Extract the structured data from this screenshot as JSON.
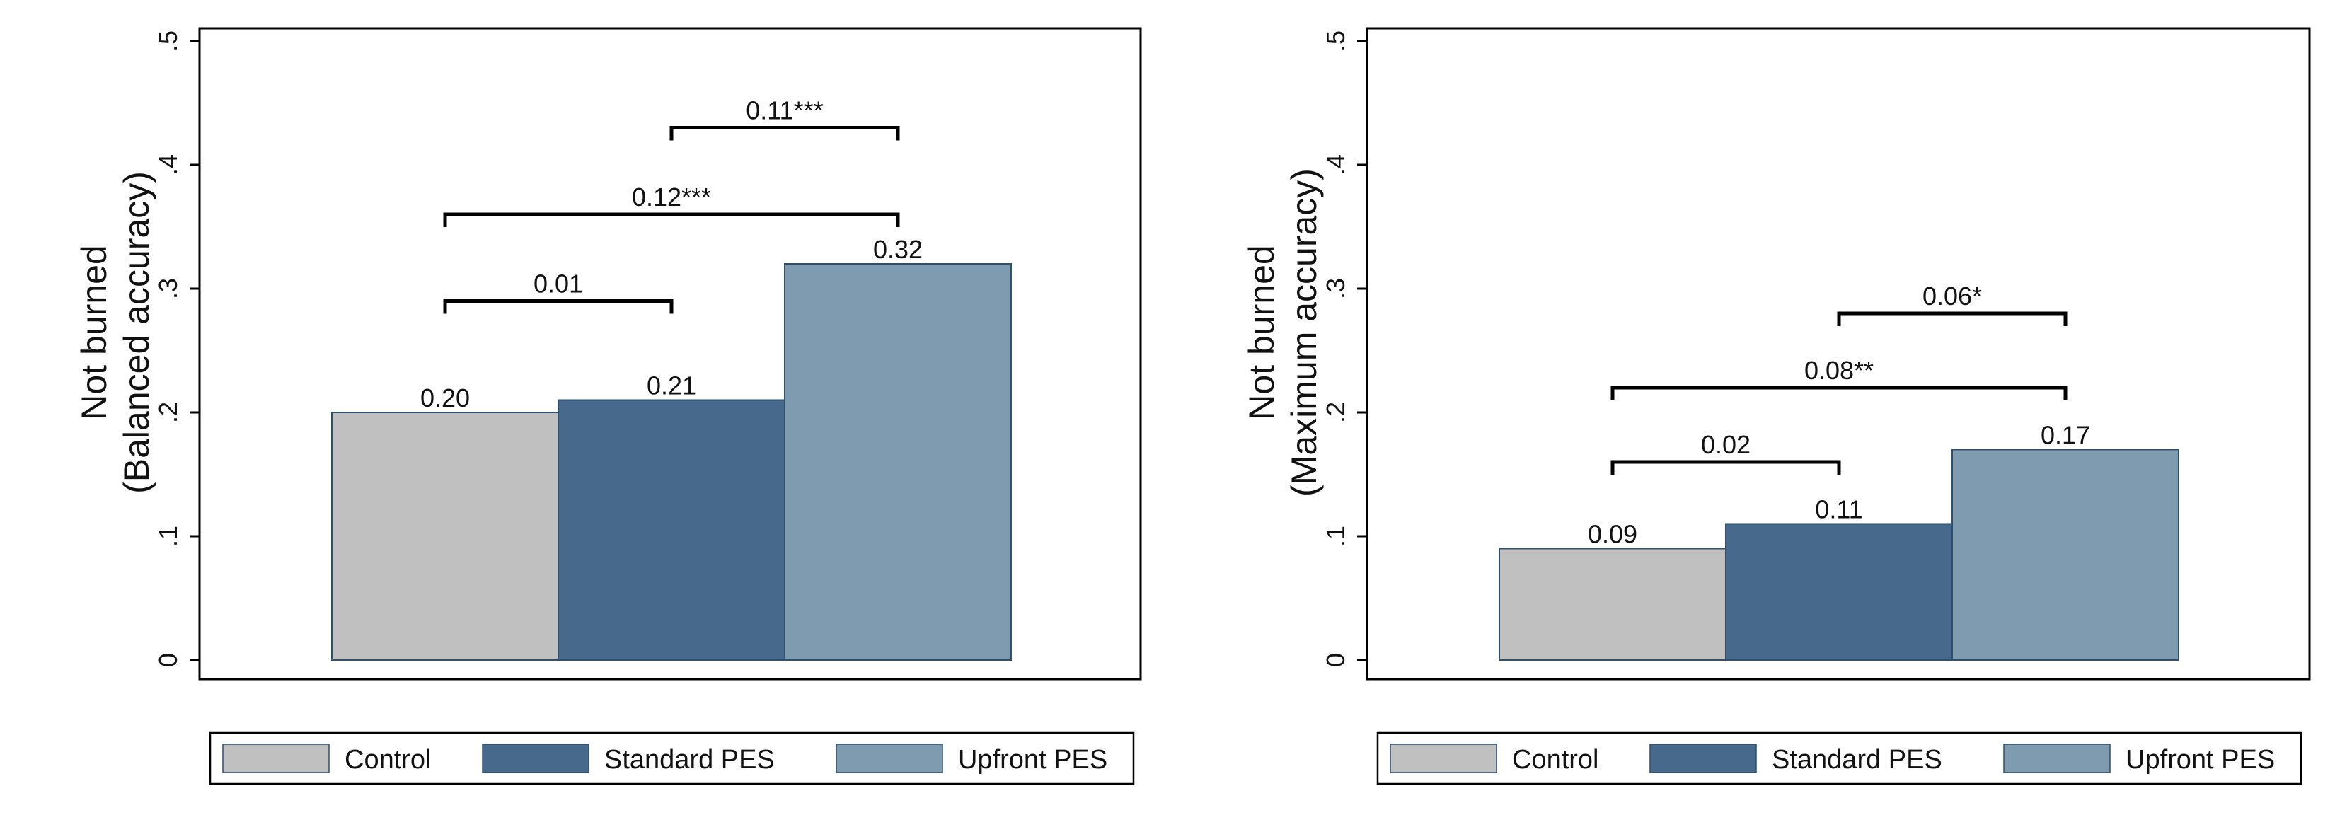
{
  "colors": {
    "control": "#c0c0c0",
    "standard_pes": "#476a8c",
    "upfront_pes": "#7f9bb0",
    "axis": "#000000",
    "background": "#ffffff"
  },
  "legend": {
    "placement": "bottom",
    "items": [
      "Control",
      "Standard PES",
      "Upfront PES"
    ]
  },
  "chart_data": [
    {
      "type": "bar",
      "categories": [
        "Control",
        "Standard PES",
        "Upfront PES"
      ],
      "values": [
        0.2,
        0.21,
        0.32
      ],
      "value_labels": [
        "0.20",
        "0.21",
        "0.32"
      ],
      "title": "",
      "xlabel": "",
      "ylabel_lines": [
        "Not burned",
        "(Balanced accuracy)"
      ],
      "ylim": [
        0,
        0.5
      ],
      "yticks": [
        0,
        0.1,
        0.2,
        0.3,
        0.4,
        0.5
      ],
      "ytick_labels": [
        "0",
        ".1",
        ".2",
        ".3",
        ".4",
        ".5"
      ],
      "grid": false,
      "comparisons": [
        {
          "from": 0,
          "to": 1,
          "y": 0.29,
          "label": "0.01"
        },
        {
          "from": 0,
          "to": 2,
          "y": 0.36,
          "label": "0.12***"
        },
        {
          "from": 1,
          "to": 2,
          "y": 0.43,
          "label": "0.11***"
        }
      ]
    },
    {
      "type": "bar",
      "categories": [
        "Control",
        "Standard PES",
        "Upfront PES"
      ],
      "values": [
        0.09,
        0.11,
        0.17
      ],
      "value_labels": [
        "0.09",
        "0.11",
        "0.17"
      ],
      "title": "",
      "xlabel": "",
      "ylabel_lines": [
        "Not burned",
        "(Maximum accuracy)"
      ],
      "ylim": [
        0,
        0.5
      ],
      "yticks": [
        0,
        0.1,
        0.2,
        0.3,
        0.4,
        0.5
      ],
      "ytick_labels": [
        "0",
        ".1",
        ".2",
        ".3",
        ".4",
        ".5"
      ],
      "grid": false,
      "comparisons": [
        {
          "from": 0,
          "to": 1,
          "y": 0.16,
          "label": "0.02"
        },
        {
          "from": 0,
          "to": 2,
          "y": 0.22,
          "label": "0.08**"
        },
        {
          "from": 1,
          "to": 2,
          "y": 0.28,
          "label": "0.06*"
        }
      ]
    }
  ]
}
